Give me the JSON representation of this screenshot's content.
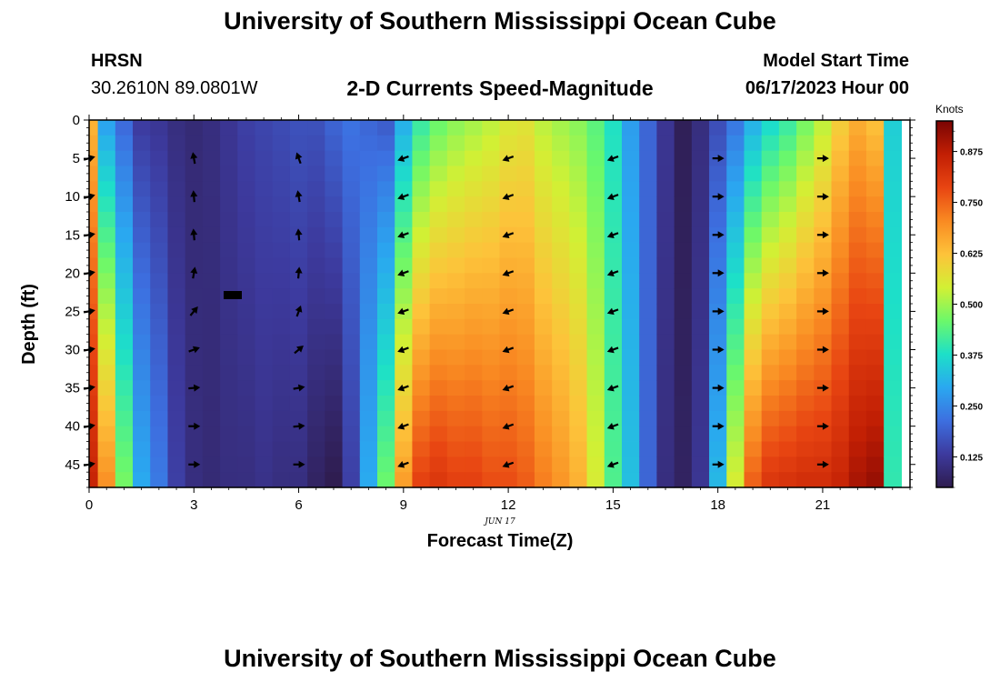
{
  "page": {
    "title": "University of Southern Mississippi Ocean Cube",
    "bottom_title": "University of Southern Mississippi Ocean Cube"
  },
  "station": {
    "name": "HRSN",
    "coords": "30.2610N  89.0801W"
  },
  "model": {
    "label": "Model Start Time",
    "start": "06/17/2023 Hour 00"
  },
  "chart_data": {
    "type": "heatmap",
    "title": "2-D Currents Speed-Magnitude",
    "xlabel": "Forecast Time(Z)",
    "ylabel": "Depth (ft)",
    "x_note": "JUN 17",
    "xlim": [
      0,
      23.5
    ],
    "ylim": [
      0,
      48
    ],
    "y_inverted": true,
    "x_ticks": [
      0,
      3,
      6,
      9,
      12,
      15,
      18,
      21
    ],
    "y_ticks": [
      0,
      5,
      10,
      15,
      20,
      25,
      30,
      35,
      40,
      45
    ],
    "colorbar": {
      "label": "Knots",
      "range": [
        0.05,
        0.95
      ],
      "ticks": [
        "0.125",
        "0.250",
        "0.375",
        "0.500",
        "0.625",
        "0.750",
        "0.875"
      ],
      "colors": [
        "#2e1c4e",
        "#3d3a9e",
        "#3d6fe0",
        "#2aa8f0",
        "#1de0c8",
        "#6cf86a",
        "#d2f034",
        "#fdc33a",
        "#f98a22",
        "#e84512",
        "#c21f04",
        "#7a0403"
      ]
    },
    "hours": [
      0,
      0.5,
      1,
      1.5,
      2,
      2.5,
      3,
      3.5,
      4,
      4.5,
      5,
      5.5,
      6,
      6.5,
      7,
      7.5,
      8,
      8.5,
      9,
      9.5,
      10,
      10.5,
      11,
      11.5,
      12,
      12.5,
      13,
      13.5,
      14,
      14.5,
      15,
      15.5,
      16,
      16.5,
      17,
      17.5,
      18,
      18.5,
      19,
      19.5,
      20,
      20.5,
      21,
      21.5,
      22,
      22.5,
      23
    ],
    "surface_speed_knots": [
      0.64,
      0.28,
      0.2,
      0.13,
      0.12,
      0.1,
      0.09,
      0.1,
      0.12,
      0.14,
      0.15,
      0.16,
      0.17,
      0.17,
      0.2,
      0.22,
      0.2,
      0.18,
      0.3,
      0.4,
      0.45,
      0.48,
      0.5,
      0.52,
      0.55,
      0.56,
      0.52,
      0.5,
      0.48,
      0.44,
      0.38,
      0.28,
      0.2,
      0.12,
      0.06,
      0.1,
      0.16,
      0.22,
      0.3,
      0.36,
      0.4,
      0.46,
      0.52,
      0.6,
      0.65,
      0.62,
      0.35
    ],
    "bottom_speed_knots": [
      0.86,
      0.7,
      0.47,
      0.3,
      0.23,
      0.14,
      0.1,
      0.09,
      0.1,
      0.1,
      0.11,
      0.1,
      0.1,
      0.07,
      0.05,
      0.14,
      0.3,
      0.46,
      0.68,
      0.8,
      0.82,
      0.8,
      0.8,
      0.78,
      0.78,
      0.76,
      0.72,
      0.69,
      0.65,
      0.55,
      0.43,
      0.33,
      0.2,
      0.1,
      0.07,
      0.12,
      0.32,
      0.55,
      0.76,
      0.82,
      0.83,
      0.84,
      0.84,
      0.86,
      0.9,
      0.92,
      0.4
    ],
    "vector_hours": [
      0,
      3,
      6,
      9,
      12,
      15,
      18,
      21
    ],
    "vector_depths_ft": [
      5,
      10,
      15,
      20,
      25,
      30,
      35,
      40,
      45
    ],
    "vector_directions_deg": [
      [
        75,
        -10,
        -20,
        250,
        250,
        250,
        90,
        90
      ],
      [
        75,
        -5,
        -10,
        250,
        250,
        250,
        90,
        90
      ],
      [
        80,
        -5,
        -5,
        250,
        250,
        250,
        90,
        90
      ],
      [
        80,
        10,
        5,
        250,
        250,
        250,
        90,
        90
      ],
      [
        80,
        40,
        20,
        250,
        250,
        250,
        90,
        90
      ],
      [
        80,
        70,
        50,
        250,
        250,
        250,
        90,
        90
      ],
      [
        80,
        85,
        80,
        250,
        250,
        250,
        90,
        90
      ],
      [
        80,
        90,
        85,
        250,
        250,
        250,
        90,
        90
      ],
      [
        80,
        90,
        90,
        250,
        250,
        250,
        90,
        90
      ]
    ]
  }
}
